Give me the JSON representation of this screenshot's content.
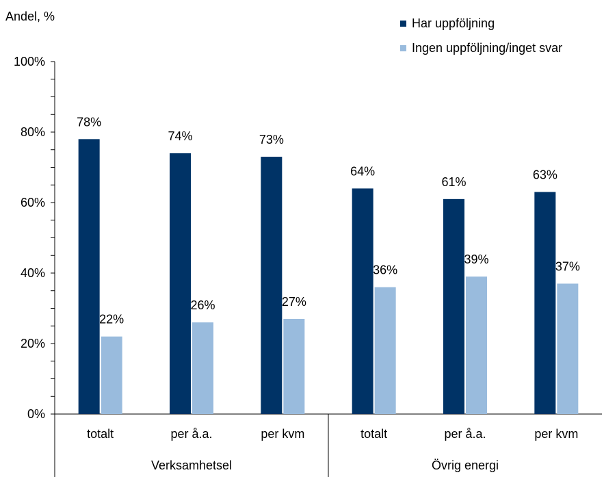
{
  "chart_data": {
    "type": "bar",
    "ylabel": "Andel, %",
    "ylim": [
      0,
      100
    ],
    "yticks": [
      "0%",
      "20%",
      "40%",
      "60%",
      "80%",
      "100%"
    ],
    "ytick_values": [
      0,
      20,
      40,
      60,
      80,
      100
    ],
    "groups": [
      {
        "label": "Verksamhetsel",
        "categories": [
          "totalt",
          "per å.a.",
          "per kvm"
        ]
      },
      {
        "label": "Övrig energi",
        "categories": [
          "totalt",
          "per å.a.",
          "per kvm"
        ]
      }
    ],
    "categories": [
      "totalt",
      "per å.a.",
      "per kvm",
      "totalt",
      "per å.a.",
      "per kvm"
    ],
    "series": [
      {
        "name": "Har uppföljning",
        "color": "#003366",
        "values": [
          78,
          74,
          73,
          64,
          61,
          63
        ],
        "labels": [
          "78%",
          "74%",
          "73%",
          "64%",
          "61%",
          "63%"
        ]
      },
      {
        "name": "Ingen uppföljning/inget svar",
        "color": "#99BBDD",
        "values": [
          22,
          26,
          27,
          36,
          39,
          37
        ],
        "labels": [
          "22%",
          "26%",
          "27%",
          "36%",
          "39%",
          "37%"
        ]
      }
    ],
    "legend_position": "top-right",
    "grid": false
  }
}
